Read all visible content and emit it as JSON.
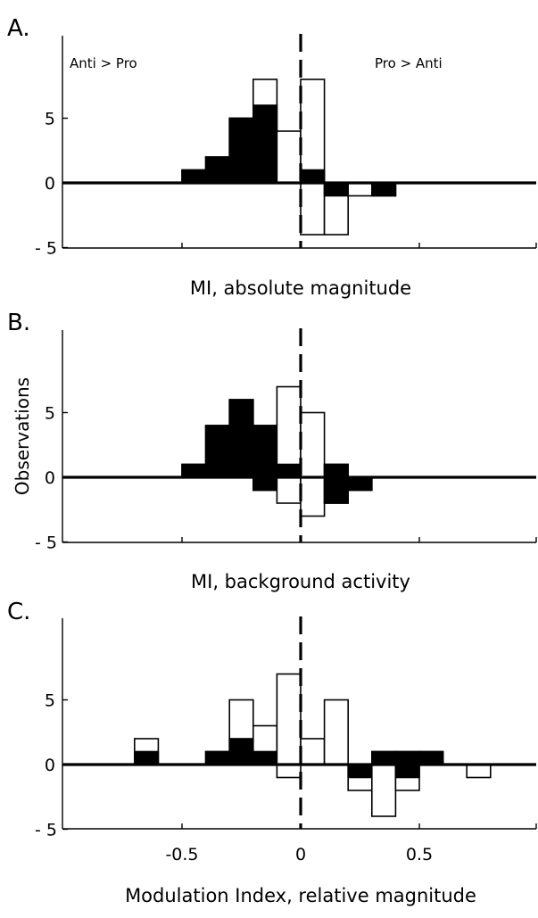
{
  "chart_data": [
    {
      "type": "bar",
      "panel_label": "A.",
      "title": "MI, absolute magnitude",
      "xlabel": "",
      "ylabel": "",
      "xlim": [
        -1,
        1
      ],
      "ylim": [
        -5,
        10
      ],
      "bin_width": 0.1,
      "yticks": [
        {
          "v": 5,
          "label": "5"
        },
        {
          "v": 0,
          "label": "0"
        },
        {
          "v": -5,
          "label": "- 5"
        }
      ],
      "xticks": [
        -0.5,
        0,
        0.5
      ],
      "xtick_labels": [],
      "region_labels": {
        "left": "Anti > Pro",
        "right": "Pro > Anti"
      },
      "bin_centers": [
        -0.45,
        -0.35,
        -0.25,
        -0.15,
        -0.05,
        0.05,
        0.15,
        0.25,
        0.35
      ],
      "positive_total": [
        1,
        2,
        5,
        8,
        4,
        8,
        0,
        0,
        0
      ],
      "positive_filled": [
        1,
        2,
        5,
        6,
        0,
        1,
        0,
        0,
        0
      ],
      "negative_total": [
        0,
        0,
        0,
        0,
        0,
        -4,
        -4,
        -1,
        -1
      ],
      "negative_filled": [
        0,
        0,
        0,
        0,
        0,
        0,
        -1,
        0,
        -1
      ],
      "colors": {
        "filled": "#000000",
        "open": "#ffffff",
        "edge": "#000000"
      }
    },
    {
      "type": "bar",
      "panel_label": "B.",
      "title": "MI, background activity",
      "xlabel": "",
      "ylabel": "Observations",
      "xlim": [
        -1,
        1
      ],
      "ylim": [
        -5,
        10
      ],
      "bin_width": 0.1,
      "yticks": [
        {
          "v": 5,
          "label": "5"
        },
        {
          "v": 0,
          "label": "0"
        },
        {
          "v": -5,
          "label": "- 5"
        }
      ],
      "xticks": [
        -0.5,
        0,
        0.5
      ],
      "xtick_labels": [],
      "bin_centers": [
        -0.45,
        -0.35,
        -0.25,
        -0.15,
        -0.05,
        0.05,
        0.15,
        0.25
      ],
      "positive_total": [
        1,
        4,
        6,
        4,
        7,
        5,
        1,
        0
      ],
      "positive_filled": [
        1,
        4,
        6,
        4,
        1,
        0,
        1,
        0
      ],
      "negative_total": [
        0,
        0,
        0,
        -1,
        -2,
        -3,
        -2,
        -1
      ],
      "negative_filled": [
        0,
        0,
        0,
        -1,
        0,
        0,
        -2,
        -1
      ],
      "colors": {
        "filled": "#000000",
        "open": "#ffffff",
        "edge": "#000000"
      }
    },
    {
      "type": "bar",
      "panel_label": "C.",
      "title": "Modulation Index, relative magnitude",
      "xlabel": "",
      "ylabel": "",
      "xlim": [
        -1,
        1
      ],
      "ylim": [
        -5,
        10
      ],
      "bin_width": 0.1,
      "yticks": [
        {
          "v": 5,
          "label": "5"
        },
        {
          "v": 0,
          "label": "0"
        },
        {
          "v": -5,
          "label": "- 5"
        }
      ],
      "xticks": [
        -0.5,
        0,
        0.5
      ],
      "xtick_labels": [
        "-0.5",
        "0",
        "0.5"
      ],
      "bin_centers": [
        -0.65,
        -0.35,
        -0.25,
        -0.15,
        -0.05,
        0.05,
        0.15,
        0.25,
        0.35,
        0.45,
        0.55,
        0.75
      ],
      "positive_total": [
        2,
        1,
        5,
        3,
        7,
        2,
        5,
        0,
        1,
        1,
        1,
        0
      ],
      "positive_filled": [
        1,
        1,
        2,
        1,
        0,
        0,
        0,
        0,
        1,
        1,
        1,
        0
      ],
      "negative_total": [
        0,
        0,
        0,
        0,
        -1,
        0,
        0,
        -2,
        -4,
        -2,
        0,
        -1
      ],
      "negative_filled": [
        0,
        0,
        0,
        0,
        0,
        0,
        0,
        -1,
        0,
        -1,
        0,
        0
      ],
      "colors": {
        "filled": "#000000",
        "open": "#ffffff",
        "edge": "#000000"
      }
    }
  ]
}
